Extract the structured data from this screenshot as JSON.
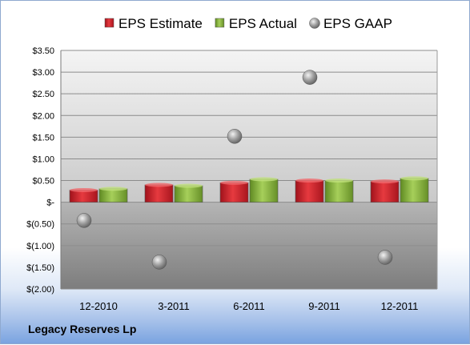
{
  "company": "Legacy Reserves Lp",
  "chart_data": {
    "type": "bar",
    "title": "",
    "xlabel": "",
    "ylabel": "",
    "categories": [
      "12-2010",
      "3-2011",
      "6-2011",
      "9-2011",
      "12-2011"
    ],
    "series": [
      {
        "name": "EPS Estimate",
        "kind": "bar",
        "color": "#d01f2a",
        "values": [
          0.28,
          0.4,
          0.45,
          0.5,
          0.48
        ]
      },
      {
        "name": "EPS Actual",
        "kind": "bar",
        "color": "#8db842",
        "values": [
          0.31,
          0.38,
          0.53,
          0.5,
          0.55
        ]
      },
      {
        "name": "EPS GAAP",
        "kind": "scatter",
        "color": "#9a9a9a",
        "values": [
          -0.42,
          -1.38,
          1.52,
          2.88,
          -1.27
        ]
      }
    ],
    "ylim": [
      -2.0,
      3.5
    ],
    "yticks": [
      3.5,
      3.0,
      2.5,
      2.0,
      1.5,
      1.0,
      0.5,
      0,
      -0.5,
      -1.0,
      -1.5,
      -2.0
    ],
    "ytick_labels": [
      "$3.50",
      "$3.00",
      "$2.50",
      "$2.00",
      "$1.50",
      "$1.00",
      "$0.50",
      "$-",
      "$(0.50)",
      "$(1.00)",
      "$(1.50)",
      "$(2.00)"
    ],
    "grid": true,
    "legend_position": "top"
  }
}
